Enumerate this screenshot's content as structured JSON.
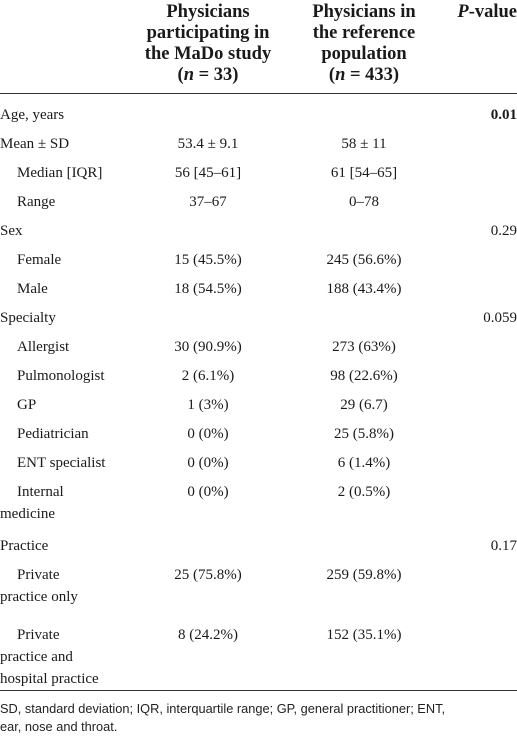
{
  "header": {
    "col2_line1": "Physicians",
    "col2_line2": "participating in",
    "col2_line3": "the MaDo study",
    "col2_n_open": "(",
    "col2_n_var": "n",
    "col2_n_rest": " = 33)",
    "col3_line1": "Physicians in",
    "col3_line2": "the reference",
    "col3_line3": "population",
    "col3_n_open": "(",
    "col3_n_var": "n",
    "col3_n_rest": " = 433)",
    "col4_p": "P",
    "col4_rest": "-value"
  },
  "rows": [
    {
      "label": "Age, years",
      "sub": false,
      "mado": "",
      "ref": "",
      "p": "0.01",
      "p_bold": true
    },
    {
      "label": "Mean ± SD",
      "sub": false,
      "mado": "53.4 ± 9.1",
      "ref": "58 ± 11",
      "p": ""
    },
    {
      "label": "Median [IQR]",
      "sub": true,
      "mado": "56 [45–61]",
      "ref": "61 [54–65]",
      "p": ""
    },
    {
      "label": "Range",
      "sub": true,
      "mado": "37–67",
      "ref": "0–78",
      "p": ""
    },
    {
      "label": "Sex",
      "sub": false,
      "mado": "",
      "ref": "",
      "p": "0.29"
    },
    {
      "label": "Female",
      "sub": true,
      "mado": "15 (45.5%)",
      "ref": "245 (56.6%)",
      "p": ""
    },
    {
      "label": "Male",
      "sub": true,
      "mado": "18 (54.5%)",
      "ref": "188 (43.4%)",
      "p": ""
    },
    {
      "label": "Specialty",
      "sub": false,
      "mado": "",
      "ref": "",
      "p": "0.059"
    },
    {
      "label": "Allergist",
      "sub": true,
      "mado": "30 (90.9%)",
      "ref": "273 (63%)",
      "p": ""
    },
    {
      "label": "Pulmonologist",
      "sub": true,
      "mado": "2 (6.1%)",
      "ref": "98 (22.6%)",
      "p": ""
    },
    {
      "label": "GP",
      "sub": true,
      "mado": "1 (3%)",
      "ref": "29 (6.7)",
      "p": ""
    },
    {
      "label": "Pediatrician",
      "sub": true,
      "mado": "0 (0%)",
      "ref": "25 (5.8%)",
      "p": ""
    },
    {
      "label": "ENT specialist",
      "sub": true,
      "mado": "0 (0%)",
      "ref": "6 (1.4%)",
      "p": ""
    },
    {
      "label_l1": "Internal",
      "label_l2": "medicine",
      "sub": true,
      "mado": "0 (0%)",
      "ref": "2 (0.5%)",
      "p": ""
    },
    {
      "label": "Practice",
      "sub": false,
      "mado": "",
      "ref": "",
      "p": "0.17"
    },
    {
      "label_l1": "Private",
      "label_l2": "practice only",
      "sub": true,
      "mado": "25 (75.8%)",
      "ref": "259 (59.8%)",
      "p": ""
    },
    {
      "label_l1": "Private",
      "label_l2": "practice and",
      "label_l3": "hospital practice",
      "sub": true,
      "mado": "8 (24.2%)",
      "ref": "152 (35.1%)",
      "p": ""
    }
  ],
  "footnote": {
    "line1": "SD, standard deviation; IQR, interquartile range; GP, general practitioner; ENT,",
    "line2": "ear, nose and throat."
  }
}
